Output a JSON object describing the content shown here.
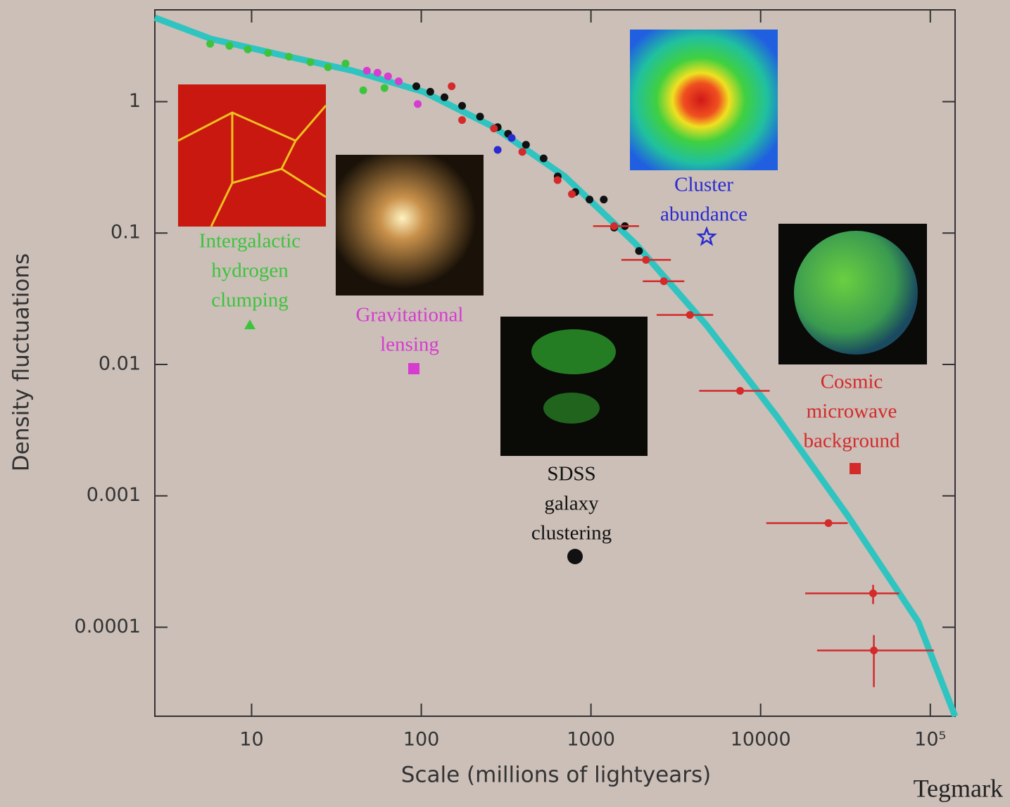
{
  "chart_data": {
    "type": "scatter",
    "xlabel": "Scale (millions of lightyears)",
    "ylabel": "Density fluctuations",
    "credit": "Tegmark",
    "xlog": true,
    "ylog": true,
    "xlim": [
      2.69,
      140000
    ],
    "ylim": [
      2.1e-05,
      5
    ],
    "xticks": [
      10,
      100,
      1000,
      10000,
      {
        "value": 100000,
        "label": "10⁵"
      }
    ],
    "yticks": [
      0.0001,
      0.001,
      0.01,
      0.1,
      1
    ],
    "curve": {
      "color": "#2fc4c0",
      "x": [
        2.69,
        5.79,
        15.1,
        39.4,
        103,
        268,
        701,
        1830,
        4780,
        12500,
        32500,
        84900,
        140000
      ],
      "values": [
        4.36,
        3.0,
        2.26,
        1.72,
        1.19,
        0.64,
        0.27,
        0.083,
        0.02,
        0.004,
        0.00071,
        0.00011,
        2.1e-05
      ]
    },
    "series": [
      {
        "label_lines": [
          "Intergalactic",
          "hydrogen",
          "clumping"
        ],
        "color": "#3cc43c",
        "marker": "triangle",
        "x": [
          5.7,
          7.4,
          9.5,
          12.5,
          16.6,
          22.2,
          28.2,
          35.8,
          45.5,
          60.7
        ],
        "values": [
          2.76,
          2.66,
          2.5,
          2.35,
          2.2,
          2.0,
          1.83,
          1.95,
          1.22,
          1.27
        ]
      },
      {
        "label_lines": [
          "Gravitational",
          "lensing"
        ],
        "color": "#d63cd0",
        "marker": "square",
        "x": [
          47.8,
          55.2,
          63.7,
          73.6,
          95.3
        ],
        "values": [
          1.72,
          1.66,
          1.56,
          1.43,
          0.96
        ]
      },
      {
        "label_lines": [
          "SDSS",
          "galaxy",
          "clustering"
        ],
        "color": "#111111",
        "marker": "circle",
        "x": [
          93.5,
          113,
          137,
          174,
          222,
          282,
          325,
          414,
          526,
          637,
          809,
          981,
          1190,
          1370,
          1585,
          1920
        ],
        "values": [
          1.31,
          1.19,
          1.08,
          0.93,
          0.77,
          0.64,
          0.57,
          0.47,
          0.37,
          0.27,
          0.205,
          0.18,
          0.18,
          0.11,
          0.113,
          0.073
        ]
      },
      {
        "label_lines": [
          "Cluster",
          "abundance"
        ],
        "color": "#2a2ad0",
        "marker": "star",
        "x": [
          282,
          341
        ],
        "values": [
          0.43,
          0.53
        ]
      },
      {
        "label_lines": [
          "Cosmic",
          "microwave",
          "background"
        ],
        "color": "#d42a2a",
        "marker": "square",
        "x": [
          151,
          174,
          268,
          394,
          636,
          772,
          1370,
          2110,
          2690,
          3830,
          7570,
          25100,
          46000,
          46500
        ],
        "values": [
          1.31,
          0.725,
          0.625,
          0.415,
          0.253,
          0.198,
          0.113,
          0.0625,
          0.043,
          0.0238,
          0.0063,
          0.00062,
          0.000181,
          6.65e-05
        ],
        "xmin": [
          null,
          null,
          null,
          null,
          null,
          null,
          1030,
          1510,
          2020,
          2440,
          4340,
          10800,
          18300,
          21500
        ],
        "xmax": [
          null,
          null,
          null,
          null,
          null,
          null,
          1920,
          2960,
          3550,
          5250,
          11300,
          32600,
          65600,
          105000
        ],
        "ymin": [
          null,
          null,
          null,
          null,
          null,
          null,
          null,
          null,
          null,
          null,
          null,
          null,
          0.00015,
          3.5e-05
        ],
        "ymax": [
          null,
          null,
          null,
          null,
          null,
          null,
          null,
          null,
          null,
          null,
          null,
          null,
          0.00021,
          8.7e-05
        ]
      }
    ]
  }
}
